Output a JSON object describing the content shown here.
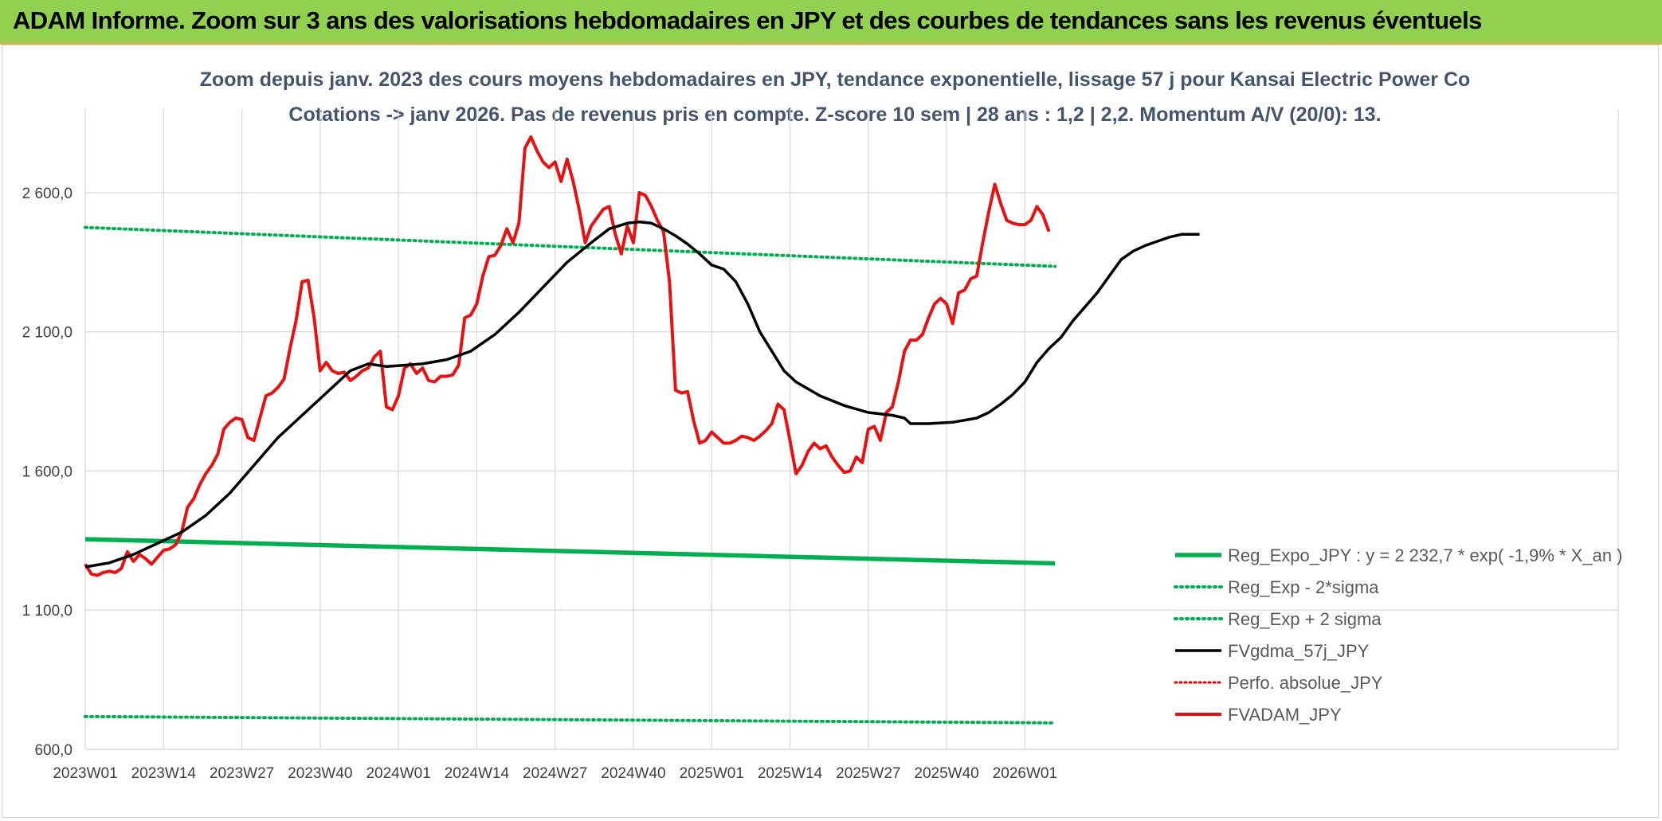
{
  "banner": {
    "title": "ADAM Informe. Zoom sur 3 ans des valorisations hebdomadaires en JPY et des courbes de tendances sans les revenus éventuels"
  },
  "colors": {
    "banner": "#92d050",
    "reg_expo": "#00b050",
    "sigma": "#00b050",
    "fvgdma": "#000000",
    "perfo": "#e00000",
    "fvadam": "#e81010"
  },
  "chart_data": {
    "type": "line",
    "title": "Zoom depuis janv. 2023 des cours moyens hebdomadaires en JPY, tendance exponentielle, lissage 57 j pour Kansai Electric Power Co",
    "subtitle": "Cotations -> janv 2026. Pas de revenus pris en compte. Z-score 10 sem | 28 ans : 1,2 | 2,2. Momentum A/V (20/0): 13.",
    "x_tick_labels": [
      "2023W01",
      "2023W14",
      "2023W27",
      "2023W40",
      "2024W01",
      "2024W14",
      "2024W27",
      "2024W40",
      "2025W01",
      "2025W14",
      "2025W27",
      "2025W40",
      "2026W01"
    ],
    "x_tick_index": [
      0,
      13,
      26,
      39,
      52,
      65,
      78,
      91,
      104,
      117,
      130,
      143,
      156
    ],
    "n_weeks": 162,
    "y_tick_labels": [
      "600,0",
      "1 100,0",
      "1 600,0",
      "2 100,0",
      "2 600,0"
    ],
    "y_ticks": [
      600,
      1100,
      1600,
      2100,
      2600
    ],
    "ylim": [
      600,
      2900
    ],
    "grid": true,
    "legend_position": "bottom-right",
    "series": [
      {
        "name": "Reg_Expo_JPY : y = 2 232,7 * exp( -1,9% * X_an )",
        "style": "thick",
        "points": [
          [
            0,
            1355
          ],
          [
            161,
            1268
          ]
        ]
      },
      {
        "name": "Reg_Exp - 2*sigma",
        "style": "dotted",
        "points": [
          [
            0,
            718
          ],
          [
            161,
            695
          ]
        ]
      },
      {
        "name": "Reg_Exp + 2 sigma",
        "style": "dotted",
        "points": [
          [
            0,
            2475
          ],
          [
            161,
            2335
          ]
        ]
      },
      {
        "name": "FVgdma_57j_JPY",
        "style": "solid",
        "points": [
          [
            0,
            1255
          ],
          [
            4,
            1270
          ],
          [
            8,
            1300
          ],
          [
            12,
            1340
          ],
          [
            16,
            1380
          ],
          [
            20,
            1440
          ],
          [
            24,
            1520
          ],
          [
            28,
            1620
          ],
          [
            32,
            1720
          ],
          [
            36,
            1800
          ],
          [
            40,
            1880
          ],
          [
            44,
            1960
          ],
          [
            47,
            1985
          ],
          [
            50,
            1975
          ],
          [
            53,
            1980
          ],
          [
            56,
            1985
          ],
          [
            60,
            2000
          ],
          [
            64,
            2030
          ],
          [
            68,
            2090
          ],
          [
            72,
            2170
          ],
          [
            76,
            2260
          ],
          [
            80,
            2350
          ],
          [
            84,
            2420
          ],
          [
            87,
            2470
          ],
          [
            90,
            2490
          ],
          [
            92,
            2495
          ],
          [
            94,
            2490
          ],
          [
            96,
            2470
          ],
          [
            98,
            2445
          ],
          [
            100,
            2415
          ],
          [
            102,
            2380
          ],
          [
            104,
            2340
          ],
          [
            106,
            2325
          ],
          [
            108,
            2280
          ],
          [
            110,
            2200
          ],
          [
            112,
            2100
          ],
          [
            114,
            2030
          ],
          [
            116,
            1960
          ],
          [
            118,
            1920
          ],
          [
            122,
            1870
          ],
          [
            126,
            1835
          ],
          [
            130,
            1810
          ],
          [
            134,
            1800
          ],
          [
            136,
            1790
          ],
          [
            137,
            1770
          ],
          [
            140,
            1770
          ],
          [
            144,
            1775
          ],
          [
            148,
            1790
          ],
          [
            150,
            1810
          ],
          [
            152,
            1840
          ],
          [
            154,
            1875
          ],
          [
            156,
            1920
          ],
          [
            158,
            1990
          ],
          [
            160,
            2040
          ],
          [
            162,
            2080
          ],
          [
            164,
            2140
          ],
          [
            166,
            2190
          ],
          [
            168,
            2240
          ],
          [
            170,
            2300
          ],
          [
            172,
            2360
          ],
          [
            174,
            2390
          ],
          [
            176,
            2410
          ],
          [
            178,
            2425
          ],
          [
            180,
            2440
          ],
          [
            182,
            2450
          ],
          [
            184,
            2450
          ],
          [
            185,
            2450
          ]
        ]
      },
      {
        "name": "Perfo. absolue_JPY",
        "style": "dotted-red",
        "points": []
      },
      {
        "name": "FVADAM_JPY",
        "style": "solid-red",
        "points": [
          [
            0,
            1265
          ],
          [
            1,
            1230
          ],
          [
            2,
            1225
          ],
          [
            3,
            1235
          ],
          [
            4,
            1240
          ],
          [
            5,
            1235
          ],
          [
            6,
            1250
          ],
          [
            7,
            1310
          ],
          [
            8,
            1275
          ],
          [
            9,
            1300
          ],
          [
            10,
            1285
          ],
          [
            11,
            1265
          ],
          [
            12,
            1290
          ],
          [
            13,
            1315
          ],
          [
            14,
            1320
          ],
          [
            15,
            1335
          ],
          [
            16,
            1380
          ],
          [
            17,
            1470
          ],
          [
            18,
            1500
          ],
          [
            19,
            1550
          ],
          [
            20,
            1590
          ],
          [
            21,
            1620
          ],
          [
            22,
            1660
          ],
          [
            23,
            1750
          ],
          [
            24,
            1775
          ],
          [
            25,
            1790
          ],
          [
            26,
            1785
          ],
          [
            27,
            1720
          ],
          [
            28,
            1710
          ],
          [
            29,
            1790
          ],
          [
            30,
            1870
          ],
          [
            31,
            1880
          ],
          [
            32,
            1900
          ],
          [
            33,
            1930
          ],
          [
            34,
            2040
          ],
          [
            35,
            2140
          ],
          [
            36,
            2280
          ],
          [
            37,
            2285
          ],
          [
            38,
            2150
          ],
          [
            39,
            1960
          ],
          [
            40,
            1990
          ],
          [
            41,
            1960
          ],
          [
            42,
            1950
          ],
          [
            43,
            1955
          ],
          [
            44,
            1925
          ],
          [
            45,
            1940
          ],
          [
            46,
            1960
          ],
          [
            47,
            1970
          ],
          [
            48,
            2010
          ],
          [
            49,
            2030
          ],
          [
            50,
            1830
          ],
          [
            51,
            1820
          ],
          [
            52,
            1870
          ],
          [
            53,
            1970
          ],
          [
            54,
            1985
          ],
          [
            55,
            1950
          ],
          [
            56,
            1970
          ],
          [
            57,
            1925
          ],
          [
            58,
            1920
          ],
          [
            59,
            1940
          ],
          [
            60,
            1940
          ],
          [
            61,
            1945
          ],
          [
            62,
            1980
          ],
          [
            63,
            2150
          ],
          [
            64,
            2160
          ],
          [
            65,
            2200
          ],
          [
            66,
            2300
          ],
          [
            67,
            2370
          ],
          [
            68,
            2375
          ],
          [
            69,
            2410
          ],
          [
            70,
            2470
          ],
          [
            71,
            2420
          ],
          [
            72,
            2490
          ],
          [
            73,
            2760
          ],
          [
            74,
            2800
          ],
          [
            75,
            2750
          ],
          [
            76,
            2710
          ],
          [
            77,
            2690
          ],
          [
            78,
            2710
          ],
          [
            79,
            2640
          ],
          [
            80,
            2720
          ],
          [
            81,
            2640
          ],
          [
            82,
            2540
          ],
          [
            83,
            2420
          ],
          [
            84,
            2480
          ],
          [
            85,
            2510
          ],
          [
            86,
            2540
          ],
          [
            87,
            2550
          ],
          [
            88,
            2450
          ],
          [
            89,
            2380
          ],
          [
            90,
            2480
          ],
          [
            91,
            2420
          ],
          [
            92,
            2600
          ],
          [
            93,
            2590
          ],
          [
            94,
            2550
          ],
          [
            95,
            2500
          ],
          [
            96,
            2460
          ],
          [
            97,
            2280
          ],
          [
            98,
            1890
          ],
          [
            99,
            1880
          ],
          [
            100,
            1885
          ],
          [
            101,
            1780
          ],
          [
            102,
            1700
          ],
          [
            103,
            1710
          ],
          [
            104,
            1740
          ],
          [
            105,
            1720
          ],
          [
            106,
            1700
          ],
          [
            107,
            1700
          ],
          [
            108,
            1710
          ],
          [
            109,
            1725
          ],
          [
            110,
            1720
          ],
          [
            111,
            1710
          ],
          [
            112,
            1725
          ],
          [
            113,
            1745
          ],
          [
            114,
            1770
          ],
          [
            115,
            1840
          ],
          [
            116,
            1820
          ],
          [
            117,
            1710
          ],
          [
            118,
            1590
          ],
          [
            119,
            1620
          ],
          [
            120,
            1670
          ],
          [
            121,
            1700
          ],
          [
            122,
            1680
          ],
          [
            123,
            1690
          ],
          [
            124,
            1650
          ],
          [
            125,
            1620
          ],
          [
            126,
            1595
          ],
          [
            127,
            1600
          ],
          [
            128,
            1650
          ],
          [
            129,
            1630
          ],
          [
            130,
            1750
          ],
          [
            131,
            1760
          ],
          [
            132,
            1710
          ],
          [
            133,
            1810
          ],
          [
            134,
            1830
          ],
          [
            135,
            1920
          ],
          [
            136,
            2030
          ],
          [
            137,
            2070
          ],
          [
            138,
            2070
          ],
          [
            139,
            2090
          ],
          [
            140,
            2150
          ],
          [
            141,
            2200
          ],
          [
            142,
            2220
          ],
          [
            143,
            2200
          ],
          [
            144,
            2130
          ],
          [
            145,
            2240
          ],
          [
            146,
            2250
          ],
          [
            147,
            2290
          ],
          [
            148,
            2300
          ],
          [
            149,
            2420
          ],
          [
            150,
            2530
          ],
          [
            151,
            2630
          ],
          [
            152,
            2560
          ],
          [
            153,
            2500
          ],
          [
            154,
            2490
          ],
          [
            155,
            2485
          ],
          [
            156,
            2485
          ],
          [
            157,
            2500
          ],
          [
            158,
            2550
          ],
          [
            159,
            2520
          ],
          [
            160,
            2460
          ]
        ]
      }
    ]
  }
}
